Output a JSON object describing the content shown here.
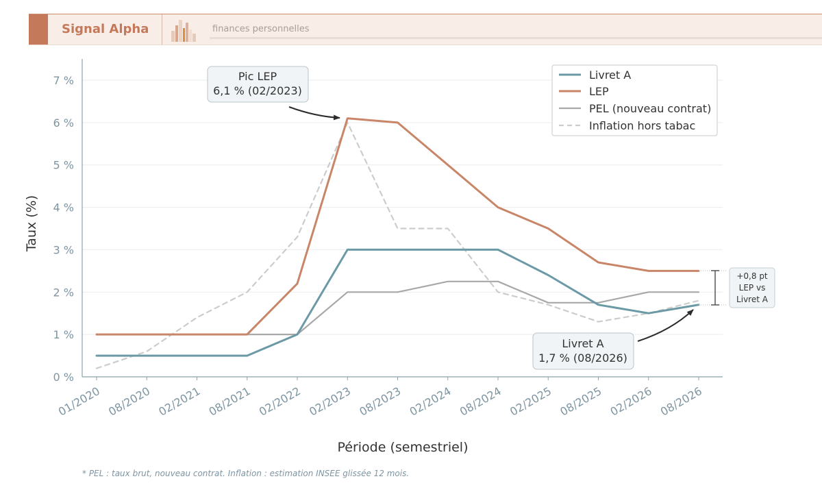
{
  "header": {
    "brand": "Signal Alpha",
    "tagline": "finances personnelles"
  },
  "colors": {
    "livret_a": "#6b9aa6",
    "lep": "#c88567",
    "pel": "#a8a8a8",
    "inflation": "#cccccc",
    "axis": "#8aa2ae",
    "tick_text": "#7e95a2",
    "brand": "#c47a5a"
  },
  "chart_data": {
    "type": "line",
    "xlabel": "Période (semestriel)",
    "ylabel": "Taux (%)",
    "ylim": [
      0,
      7
    ],
    "yticks": [
      0,
      1,
      2,
      3,
      4,
      5,
      6,
      7
    ],
    "ytick_labels": [
      "0 %",
      "1 %",
      "2 %",
      "3 %",
      "4 %",
      "5 %",
      "6 %",
      "7 %"
    ],
    "categories": [
      "01/2020",
      "08/2020",
      "02/2021",
      "08/2021",
      "02/2022",
      "02/2023",
      "08/2023",
      "02/2024",
      "08/2024",
      "02/2025",
      "08/2025",
      "02/2026",
      "08/2026"
    ],
    "grid": "horizontal",
    "legend_position": "top-right",
    "series": [
      {
        "name": "Livret A",
        "style": "solid",
        "values": [
          0.5,
          0.5,
          0.5,
          0.5,
          1.0,
          3.0,
          3.0,
          3.0,
          3.0,
          2.4,
          1.7,
          1.5,
          1.7
        ]
      },
      {
        "name": "LEP",
        "style": "solid",
        "values": [
          1.0,
          1.0,
          1.0,
          1.0,
          2.2,
          6.1,
          6.0,
          5.0,
          4.0,
          3.5,
          2.7,
          2.5,
          2.5
        ]
      },
      {
        "name": "PEL (nouveau contrat)",
        "style": "solid",
        "values": [
          1.0,
          1.0,
          1.0,
          1.0,
          1.0,
          2.0,
          2.0,
          2.25,
          2.25,
          1.75,
          1.75,
          2.0,
          2.0
        ]
      },
      {
        "name": "Inflation hors tabac",
        "style": "dashed",
        "values": [
          0.2,
          0.6,
          1.4,
          2.0,
          3.3,
          6.0,
          3.5,
          3.5,
          2.0,
          1.7,
          1.3,
          1.5,
          1.8
        ]
      }
    ],
    "annotations": {
      "peak": {
        "line1": "Pic LEP",
        "line2": "6,1 % (02/2023)",
        "x_index": 5,
        "y": 6.1
      },
      "last": {
        "line1": "Livret A",
        "line2": "1,7 % (08/2026)",
        "x_index": 12,
        "y": 1.7
      },
      "gap": {
        "line1": "+0,8 pt",
        "line2": "LEP vs",
        "line3": "Livret A",
        "y_top": 2.5,
        "y_bottom": 1.7
      }
    }
  },
  "footnote": "* PEL : taux brut, nouveau contrat. Inflation : estimation INSEE glissée 12 mois."
}
